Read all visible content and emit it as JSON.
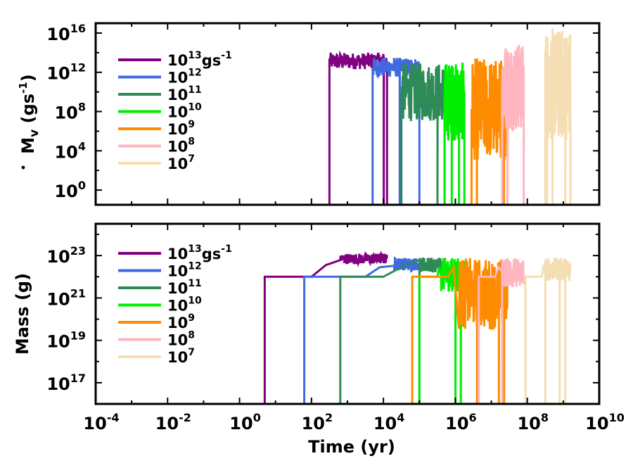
{
  "chart_data": [
    {
      "type": "line",
      "panel": "top",
      "title": "",
      "xlabel": "",
      "ylabel": "Ṁv (gs-1)",
      "ylabel_main": "M",
      "ylabel_sub": "v",
      "ylabel_unit": "(gs",
      "ylabel_unit_sup": "-1",
      "ylabel_unit_close": ")",
      "x_scale": "log",
      "y_scale": "log",
      "xlim_exp": [
        -4,
        10
      ],
      "ylim_exp": [
        -1.5,
        17
      ],
      "y_ticks_exp": [
        0,
        4,
        8,
        12,
        16
      ],
      "tick_base": "10",
      "x_tick_labels_shown": false,
      "legend_position": "top-left",
      "series": [
        {
          "name": "10^13 gs-1",
          "base": "10",
          "exp": "13",
          "unit": "gs",
          "unit_sup": "-1",
          "color": "#800080",
          "x_start_exp": 2.5,
          "x_end_exp": 4.1,
          "band_exp": [
            12.3,
            14.0
          ],
          "drop_exp": [
            4.0
          ]
        },
        {
          "name": "10^12",
          "base": "10",
          "exp": "12",
          "unit": "",
          "unit_sup": "",
          "color": "#4169E1",
          "x_start_exp": 3.7,
          "x_end_exp": 5.0,
          "band_exp": [
            11.5,
            13.5
          ],
          "drop_exp": [
            4.45
          ]
        },
        {
          "name": "10^11",
          "base": "10",
          "exp": "11",
          "unit": "",
          "unit_sup": "",
          "color": "#2E8B57",
          "x_start_exp": 4.5,
          "x_end_exp": 5.7,
          "band_exp": [
            7.0,
            13.0
          ],
          "drop_exp": [
            5.5
          ]
        },
        {
          "name": "10^10",
          "base": "10",
          "exp": "10",
          "unit": "",
          "unit_sup": "",
          "color": "#00EE00",
          "x_start_exp": 5.7,
          "x_end_exp": 6.25,
          "band_exp": [
            5.0,
            13.0
          ],
          "drop_exp": [
            5.9,
            6.1
          ]
        },
        {
          "name": "10^9",
          "base": "10",
          "exp": "9",
          "unit": "",
          "unit_sup": "",
          "color": "#FF8C00",
          "x_start_exp": 6.45,
          "x_end_exp": 7.45,
          "band_exp": [
            3.0,
            13.5
          ],
          "drop_exp": [
            6.45,
            6.6,
            7.35
          ]
        },
        {
          "name": "10^8",
          "base": "10",
          "exp": "8",
          "unit": "",
          "unit_sup": "",
          "color": "#FFB6C1",
          "x_start_exp": 7.3,
          "x_end_exp": 7.9,
          "band_exp": [
            6.0,
            15.0
          ],
          "drop_exp": [
            7.45,
            7.9
          ]
        },
        {
          "name": "10^7",
          "base": "10",
          "exp": "7",
          "unit": "",
          "unit_sup": "",
          "color": "#F5DEB3",
          "x_start_exp": 8.5,
          "x_end_exp": 9.2,
          "band_exp": [
            5.0,
            16.5
          ],
          "drop_exp": [
            8.55,
            8.7,
            9.05
          ]
        }
      ]
    },
    {
      "type": "line",
      "panel": "bottom",
      "title": "",
      "xlabel": "Time (yr)",
      "ylabel": "Mass (g)",
      "x_scale": "log",
      "y_scale": "log",
      "xlim_exp": [
        -4,
        10
      ],
      "ylim_exp": [
        16,
        24.5
      ],
      "y_ticks_exp": [
        17,
        19,
        21,
        23
      ],
      "x_ticks_exp": [
        -4,
        -2,
        0,
        2,
        4,
        6,
        8,
        10
      ],
      "tick_base": "10",
      "legend_position": "top-left",
      "series": [
        {
          "name": "10^13 gs-1",
          "base": "10",
          "exp": "13",
          "unit": "gs",
          "unit_sup": "-1",
          "color": "#800080",
          "x_rise_exp": 0.7,
          "plateau_exp": 22.0,
          "x_ramp_exp": 2.0,
          "x_start_exp": 2.8,
          "x_end_exp": 4.1,
          "band_exp": [
            22.6,
            23.1
          ],
          "drop_exp": []
        },
        {
          "name": "10^12",
          "base": "10",
          "exp": "12",
          "unit": "",
          "unit_sup": "",
          "color": "#4169E1",
          "x_rise_exp": 1.8,
          "plateau_exp": 22.0,
          "x_ramp_exp": 3.5,
          "x_start_exp": 4.3,
          "x_end_exp": 5.0,
          "band_exp": [
            22.3,
            22.9
          ],
          "drop_exp": []
        },
        {
          "name": "10^11",
          "base": "10",
          "exp": "11",
          "unit": "",
          "unit_sup": "",
          "color": "#2E8B57",
          "x_rise_exp": 2.8,
          "plateau_exp": 22.0,
          "x_ramp_exp": 4.0,
          "x_start_exp": 5.0,
          "x_end_exp": 5.6,
          "band_exp": [
            22.2,
            22.9
          ],
          "drop_exp": [
            4.9
          ]
        },
        {
          "name": "10^10",
          "base": "10",
          "exp": "10",
          "unit": "",
          "unit_sup": "",
          "color": "#00EE00",
          "x_rise_exp": 5.0,
          "plateau_exp": 22.0,
          "x_ramp_exp": 5.5,
          "x_start_exp": 5.6,
          "x_end_exp": 6.25,
          "band_exp": [
            21.3,
            22.9
          ],
          "drop_exp": [
            6.0,
            6.15
          ]
        },
        {
          "name": "10^9",
          "base": "10",
          "exp": "9",
          "unit": "",
          "unit_sup": "",
          "color": "#FF8C00",
          "x_rise_exp": 4.8,
          "plateau_exp": 22.0,
          "x_ramp_exp": 5.8,
          "x_start_exp": 6.1,
          "x_end_exp": 7.45,
          "band_exp": [
            19.5,
            22.9
          ],
          "drop_exp": [
            6.6,
            7.2,
            7.35
          ]
        },
        {
          "name": "10^8",
          "base": "10",
          "exp": "8",
          "unit": "",
          "unit_sup": "",
          "color": "#FFB6C1",
          "x_rise_exp": 6.65,
          "plateau_exp": 22.0,
          "x_ramp_exp": 7.1,
          "x_start_exp": 7.3,
          "x_end_exp": 7.9,
          "band_exp": [
            21.5,
            22.9
          ],
          "drop_exp": [
            6.7
          ]
        },
        {
          "name": "10^7",
          "base": "10",
          "exp": "7",
          "unit": "",
          "unit_sup": "",
          "color": "#F5DEB3",
          "x_rise_exp": 7.95,
          "plateau_exp": 22.0,
          "x_ramp_exp": 8.4,
          "x_start_exp": 8.5,
          "x_end_exp": 9.2,
          "band_exp": [
            21.8,
            22.9
          ],
          "drop_exp": [
            8.0,
            8.9,
            9.05
          ]
        }
      ]
    }
  ]
}
